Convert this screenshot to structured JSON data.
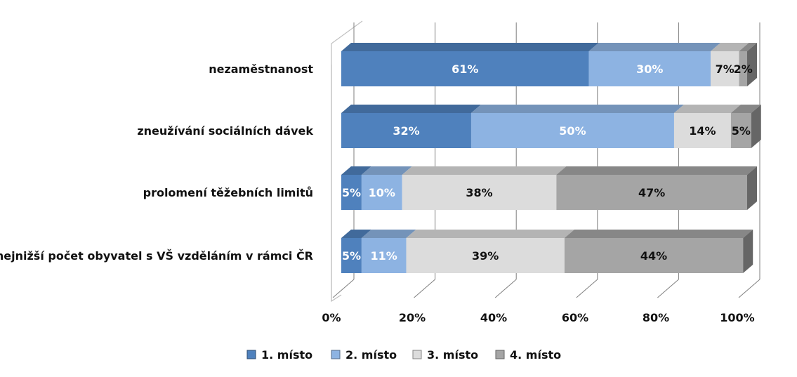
{
  "chart_data": {
    "type": "bar",
    "orientation": "horizontal",
    "stacked": "percent",
    "style": "3d",
    "categories": [
      "nezaměstnanost",
      "zneužívání sociálních dávek",
      "prolomení těžebních limitů",
      "nejnižší počet obyvatel s VŠ vzděláním v rámci ČR"
    ],
    "series": [
      {
        "name": "1. místo",
        "values": [
          61,
          32,
          5,
          5
        ],
        "labels": [
          "61%",
          "32%",
          "5%",
          "5%"
        ],
        "color": "#4f81bd",
        "label_color": "#ffffff"
      },
      {
        "name": "2. místo",
        "values": [
          30,
          50,
          10,
          11
        ],
        "labels": [
          "30%",
          "50%",
          "10%",
          "11%"
        ],
        "color": "#8db3e2",
        "label_color": "#ffffff"
      },
      {
        "name": "3. místo",
        "values": [
          7,
          14,
          38,
          39
        ],
        "labels": [
          "7%",
          "14%",
          "38%",
          "39%"
        ],
        "color": "#dcdcdc",
        "label_color": "#111111"
      },
      {
        "name": "4. místo",
        "values": [
          2,
          5,
          47,
          44
        ],
        "labels": [
          "2%",
          "5%",
          "47%",
          "44%"
        ],
        "color": "#a5a5a5",
        "label_color": "#111111"
      }
    ],
    "x_ticks": [
      "0%",
      "20%",
      "40%",
      "60%",
      "80%",
      "100%"
    ],
    "xlim": [
      0,
      100
    ],
    "grid": true,
    "legend_position": "bottom"
  }
}
